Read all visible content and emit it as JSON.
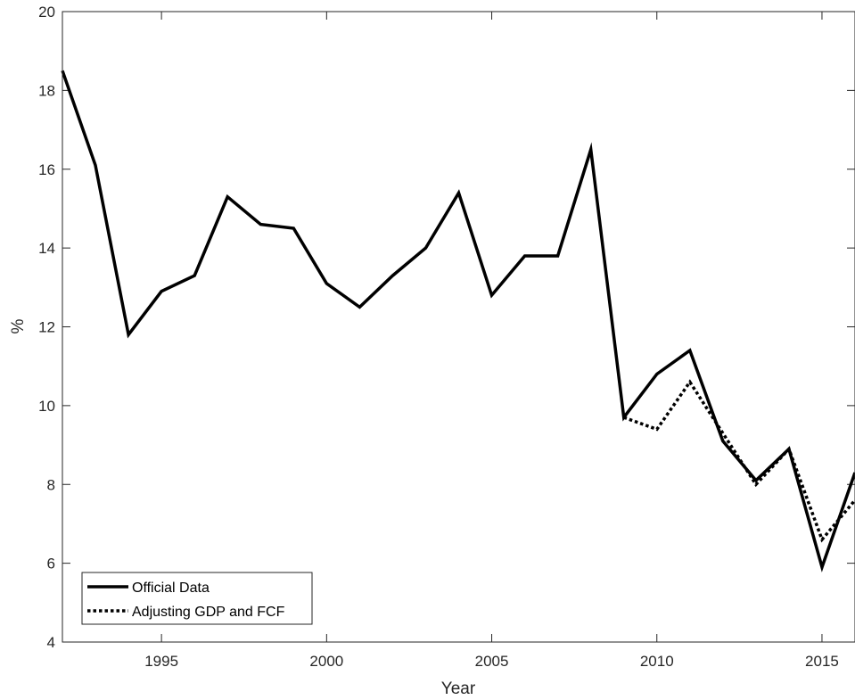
{
  "chart_data": {
    "type": "line",
    "title": "",
    "xlabel": "Year",
    "ylabel": "%",
    "xlim": [
      1992,
      2016
    ],
    "ylim": [
      4,
      20
    ],
    "xticks": [
      1995,
      2000,
      2005,
      2010,
      2015
    ],
    "yticks": [
      4,
      6,
      8,
      10,
      12,
      14,
      16,
      18,
      20
    ],
    "grid": false,
    "legend_position": "bottom-left",
    "series": [
      {
        "name": "Official Data",
        "style": "solid",
        "color": "#000000",
        "x": [
          1992,
          1993,
          1994,
          1995,
          1996,
          1997,
          1998,
          1999,
          2000,
          2001,
          2002,
          2003,
          2004,
          2005,
          2006,
          2007,
          2008,
          2009,
          2010,
          2011,
          2012,
          2013,
          2014,
          2015,
          2016
        ],
        "values": [
          18.5,
          16.1,
          11.8,
          12.9,
          13.3,
          15.3,
          14.6,
          14.5,
          13.1,
          12.5,
          13.3,
          14.0,
          15.4,
          12.8,
          13.8,
          13.8,
          16.5,
          9.7,
          10.8,
          11.4,
          9.1,
          8.1,
          8.9,
          5.9,
          8.3
        ]
      },
      {
        "name": "Adjusting GDP and FCF",
        "style": "dotted",
        "color": "#000000",
        "x": [
          2009,
          2010,
          2011,
          2012,
          2013,
          2014,
          2015,
          2016
        ],
        "values": [
          9.7,
          9.4,
          10.6,
          9.3,
          8.0,
          8.9,
          6.6,
          7.6
        ]
      }
    ]
  }
}
